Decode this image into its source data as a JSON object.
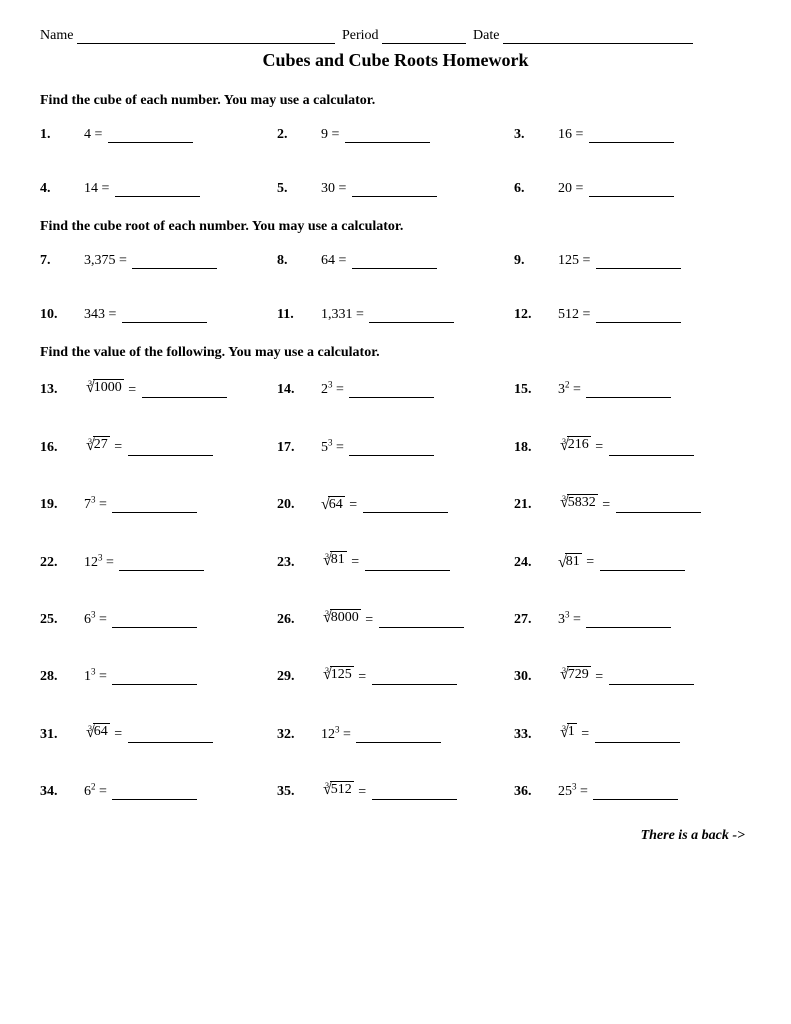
{
  "header": {
    "name_label": "Name",
    "period_label": "Period",
    "date_label": "Date"
  },
  "title": "Cubes and Cube Roots Homework",
  "sections": [
    {
      "heading": "Find the cube of each number.  You may use a calculator.",
      "problems": [
        {
          "n": "1.",
          "type": "plain",
          "val": "4"
        },
        {
          "n": "2.",
          "type": "plain",
          "val": "9"
        },
        {
          "n": "3.",
          "type": "plain",
          "val": "16"
        },
        {
          "n": "4.",
          "type": "plain",
          "val": "14"
        },
        {
          "n": "5.",
          "type": "plain",
          "val": "30"
        },
        {
          "n": "6.",
          "type": "plain",
          "val": "20"
        }
      ]
    },
    {
      "heading": "Find the cube root of each number.  You may use a calculator.",
      "problems": [
        {
          "n": "7.",
          "type": "plain",
          "val": "3,375"
        },
        {
          "n": "8.",
          "type": "plain",
          "val": "64"
        },
        {
          "n": "9.",
          "type": "plain",
          "val": "125"
        },
        {
          "n": "10.",
          "type": "plain",
          "val": "343"
        },
        {
          "n": "11.",
          "type": "plain",
          "val": "1,331"
        },
        {
          "n": "12.",
          "type": "plain",
          "val": "512"
        }
      ]
    },
    {
      "heading": "Find the value of the following.  You may use a calculator.",
      "problems": [
        {
          "n": "13.",
          "type": "cuberoot",
          "val": "1000"
        },
        {
          "n": "14.",
          "type": "power",
          "base": "2",
          "exp": "3"
        },
        {
          "n": "15.",
          "type": "power",
          "base": "3",
          "exp": "2"
        },
        {
          "n": "16.",
          "type": "cuberoot",
          "val": "27"
        },
        {
          "n": "17.",
          "type": "power",
          "base": "5",
          "exp": "3"
        },
        {
          "n": "18.",
          "type": "cuberoot",
          "val": "216"
        },
        {
          "n": "19.",
          "type": "power",
          "base": "7",
          "exp": "3"
        },
        {
          "n": "20.",
          "type": "sqrt",
          "val": "64"
        },
        {
          "n": "21.",
          "type": "cuberoot",
          "val": "5832"
        },
        {
          "n": "22.",
          "type": "power",
          "base": "12",
          "exp": "3"
        },
        {
          "n": "23.",
          "type": "cuberoot",
          "val": "81"
        },
        {
          "n": "24.",
          "type": "sqrt",
          "val": "81"
        },
        {
          "n": "25.",
          "type": "power",
          "base": "6",
          "exp": "3"
        },
        {
          "n": "26.",
          "type": "cuberoot",
          "val": "8000"
        },
        {
          "n": "27.",
          "type": "power",
          "base": "3",
          "exp": "3"
        },
        {
          "n": "28.",
          "type": "power",
          "base": "1",
          "exp": "3"
        },
        {
          "n": "29.",
          "type": "cuberoot",
          "val": "125"
        },
        {
          "n": "30.",
          "type": "cuberoot",
          "val": "729"
        },
        {
          "n": "31.",
          "type": "cuberoot",
          "val": "64"
        },
        {
          "n": "32.",
          "type": "power",
          "base": "12",
          "exp": "3"
        },
        {
          "n": "33.",
          "type": "cuberoot",
          "val": "1"
        },
        {
          "n": "34.",
          "type": "power",
          "base": "6",
          "exp": "2"
        },
        {
          "n": "35.",
          "type": "cuberoot",
          "val": "512"
        },
        {
          "n": "36.",
          "type": "power",
          "base": "25",
          "exp": "3"
        }
      ]
    }
  ],
  "footer": "There is a back ->",
  "blank_widths": {
    "name": 258,
    "period": 84,
    "date": 190
  }
}
